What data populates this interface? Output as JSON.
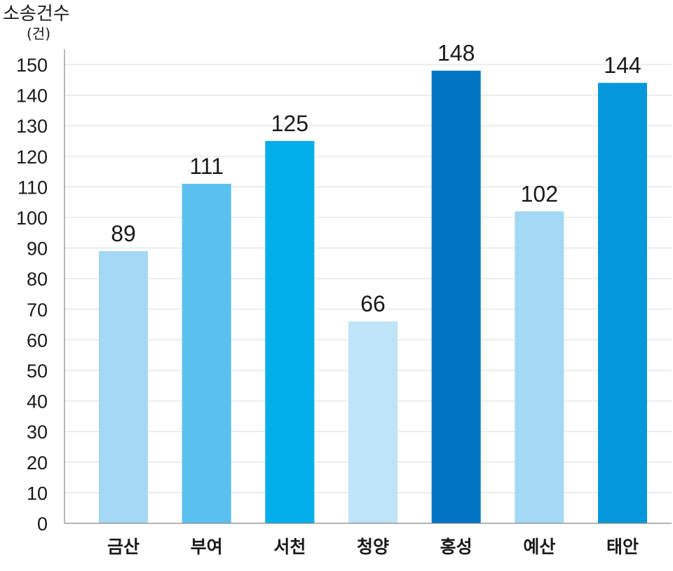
{
  "chart_data": {
    "type": "bar",
    "ylabel": "소송건수",
    "yunit": "(건)",
    "categories": [
      "금산",
      "부여",
      "서천",
      "청양",
      "홍성",
      "예산",
      "태안"
    ],
    "values": [
      89,
      111,
      125,
      66,
      148,
      102,
      144
    ],
    "colors": [
      "#a3d8f4",
      "#5ac0ee",
      "#00aeea",
      "#bde4f7",
      "#0075c2",
      "#a3d8f4",
      "#0398d9"
    ],
    "ylim": [
      0,
      150
    ],
    "yticks": [
      0,
      10,
      20,
      30,
      40,
      50,
      60,
      70,
      80,
      90,
      100,
      110,
      120,
      130,
      140,
      150
    ],
    "grid": true
  }
}
